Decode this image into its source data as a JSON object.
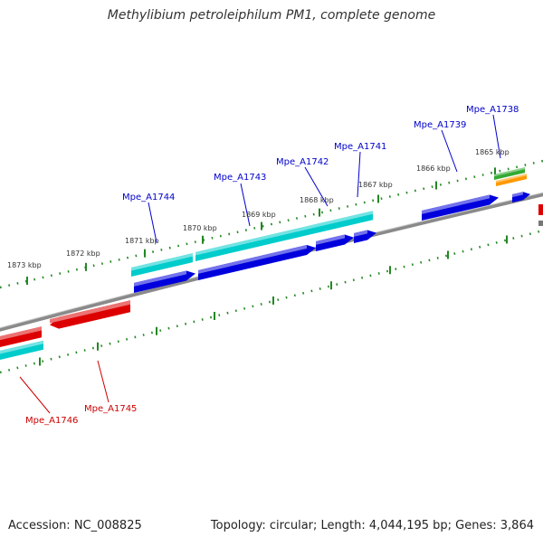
{
  "title": "Methylibium petroleiphilum PM1, complete genome",
  "footer": {
    "accession": "Accession: NC_008825",
    "summary": "Topology: circular; Length: 4,044,195 bp; Genes: 3,864"
  },
  "colors": {
    "forward_gene": "#0000dd",
    "forward_cds_cyan": "#00cccc",
    "reverse_gene": "#dd0000",
    "rna_green": "#33aa33",
    "rna_orange": "#ff9900",
    "backbone": "#808080",
    "tick": "#228822",
    "forward_label": "#0000cc",
    "reverse_label": "#cc0000"
  },
  "kbp_labels": [
    "1865 kbp",
    "1866 kbp",
    "1867 kbp",
    "1868 kbp",
    "1869 kbp",
    "1870 kbp",
    "1871 kbp",
    "1872 kbp",
    "1873 kbp"
  ],
  "forward_labels": [
    "Mpe_A1738",
    "Mpe_A1739",
    "Mpe_A1741",
    "Mpe_A1742",
    "Mpe_A1743",
    "Mpe_A1744"
  ],
  "reverse_labels": [
    "Mpe_A1745",
    "Mpe_A1746"
  ]
}
